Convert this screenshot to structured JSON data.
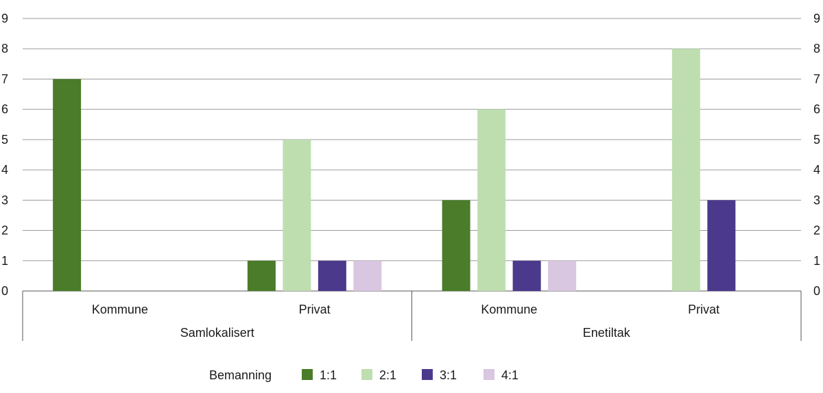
{
  "chart_data": {
    "type": "bar",
    "groups": [
      {
        "label": "Samlokalisert",
        "categories": [
          "Kommune",
          "Privat"
        ]
      },
      {
        "label": "Enetiltak",
        "categories": [
          "Kommune",
          "Privat"
        ]
      }
    ],
    "categories": [
      "Kommune",
      "Privat",
      "Kommune",
      "Privat"
    ],
    "series": [
      {
        "name": "1:1",
        "color": "#4a7c2a",
        "values": [
          7,
          1,
          3,
          0
        ]
      },
      {
        "name": "2:1",
        "color": "#bfdeb0",
        "values": [
          0,
          5,
          6,
          8
        ]
      },
      {
        "name": "3:1",
        "color": "#4b3a8c",
        "values": [
          0,
          1,
          1,
          3
        ]
      },
      {
        "name": "4:1",
        "color": "#d9c6e0",
        "values": [
          0,
          1,
          1,
          0
        ]
      }
    ],
    "ylim": [
      0,
      9
    ],
    "yticks": [
      0,
      1,
      2,
      3,
      4,
      5,
      6,
      7,
      8,
      9
    ],
    "y_axis_both_sides": true,
    "grid": true,
    "legend": {
      "title": "Bemanning",
      "position": "bottom"
    }
  }
}
